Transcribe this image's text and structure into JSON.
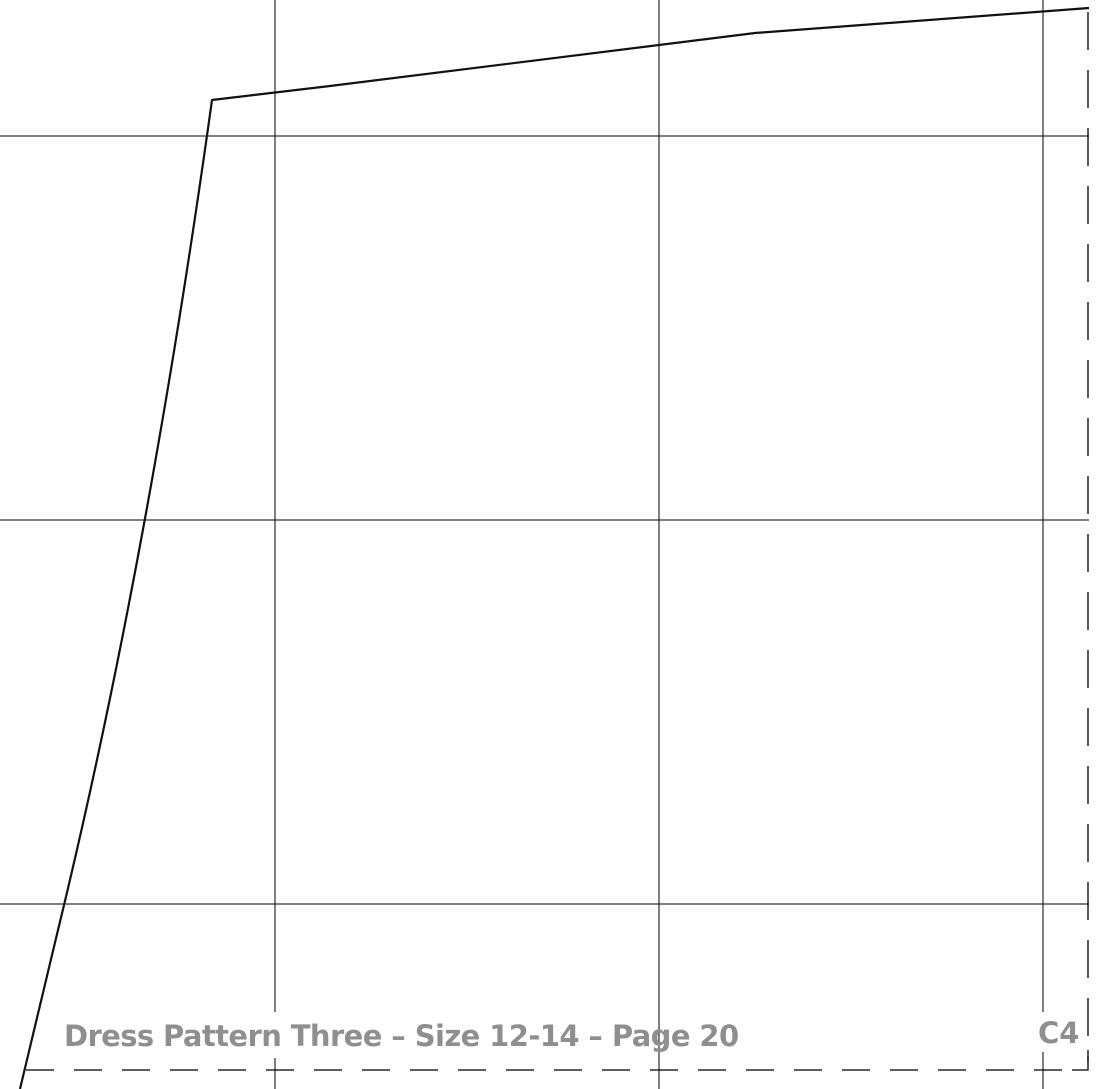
{
  "footer": {
    "title": "Dress Pattern Three – Size 12-14 – Page 20",
    "page_code": "C4"
  },
  "colors": {
    "grid_line": "#000000",
    "pattern_outline": "#111111",
    "cut_border": "#000000",
    "footer_text": "#8f8f8f",
    "background": "#ffffff"
  }
}
